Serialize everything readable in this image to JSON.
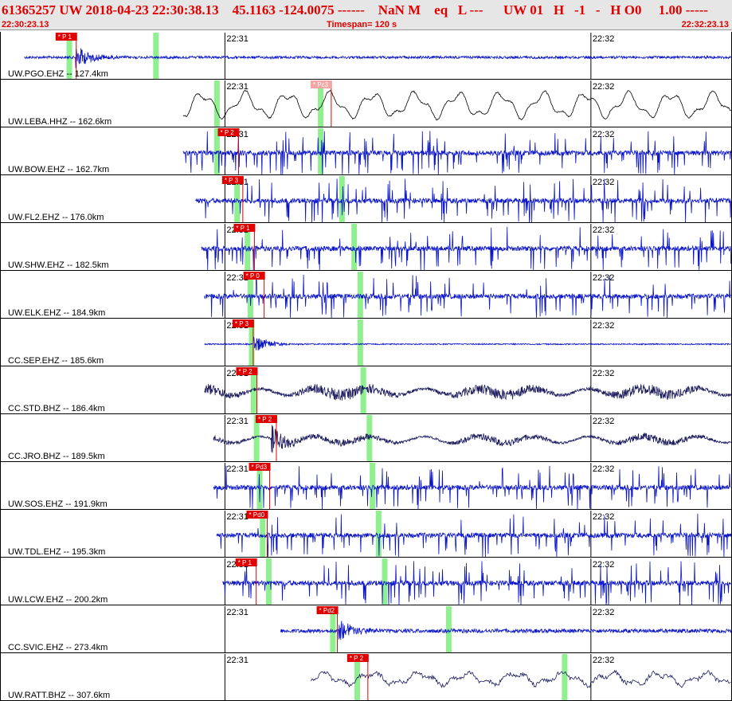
{
  "header": {
    "title_line": "61365257 UW 2018-04-23 22:30:38.13    45.1163 -124.0075 ------    NaN M    eq   L ---      UW 01   H   -1   -   H O0     1.00 -----",
    "start_time": "22:30:23.13",
    "timespan": "Timespan= 120 s",
    "end_time": "22:32:23.13"
  },
  "chart_data": {
    "type": "line",
    "title": "",
    "xlabel": "",
    "ylabel": "",
    "time_axis": {
      "start": "22:30:23.13",
      "end": "22:32:23.13",
      "span_s": 120,
      "minute_ticks": [
        {
          "label": "22:31",
          "t": 36.87
        },
        {
          "label": "22:32",
          "t": 96.87
        }
      ]
    },
    "colors": {
      "short_period": "#0a14c8",
      "broadband": "#1c1b5e",
      "long_period": "#000000",
      "pick": "#e00000",
      "pick_alt": "#f3a6a6",
      "window": "#90f090"
    },
    "series": [
      {
        "label": "UW.PGO.EHZ -- 127.4km",
        "style": "sp",
        "t_start": 4,
        "pick": {
          "label": "P 1",
          "t": 11.2
        },
        "event_t": 12.3,
        "amp": 0.55,
        "noise": 0.08,
        "greens": [
          11.3,
          25.5
        ]
      },
      {
        "label": "UW.LEBA.HHZ -- 162.6km",
        "style": "lp",
        "t_start": 30.0,
        "pick": {
          "label": "Pc3",
          "t": 53.0,
          "alt": true
        },
        "event_t": null,
        "amp": 0.0,
        "noise": 0.0,
        "greens": [
          35.5,
          52.5
        ]
      },
      {
        "label": "UW.BOW.EHZ -- 162.7km",
        "style": "spike",
        "t_start": 30.0,
        "pick": {
          "label": "P 2",
          "t": 37.8
        },
        "event_t": null,
        "amp": 0.0,
        "noise": 0.45,
        "greens": [
          35.5,
          52.5
        ]
      },
      {
        "label": "UW.FL2.EHZ -- 176.0km",
        "style": "spike",
        "t_start": 32.0,
        "pick": {
          "label": "P 3",
          "t": 38.5
        },
        "event_t": null,
        "amp": 0.0,
        "noise": 0.45,
        "greens": [
          38.8,
          56.0
        ]
      },
      {
        "label": "UW.SHW.EHZ -- 182.5km",
        "style": "spike",
        "t_start": 33.0,
        "pick": {
          "label": "P 1",
          "t": 40.4
        },
        "event_t": null,
        "amp": 0.0,
        "noise": 0.5,
        "greens": [
          40.5,
          58.0
        ]
      },
      {
        "label": "UW.ELK.EHZ -- 184.9km",
        "style": "spike",
        "t_start": 33.5,
        "pick": {
          "label": "P 0",
          "t": 42.0
        },
        "event_t": null,
        "amp": 0.0,
        "noise": 0.3,
        "greens": [
          41.0,
          59.0
        ]
      },
      {
        "label": "CC.SEP.EHZ -- 185.6km",
        "style": "sp",
        "t_start": 33.5,
        "pick": {
          "label": "P 3",
          "t": 40.2
        },
        "event_t": 41.5,
        "amp": 0.4,
        "noise": 0.04,
        "greens": [
          41.2,
          59.0
        ]
      },
      {
        "label": "CC.STD.BHZ -- 186.4km",
        "style": "bb",
        "t_start": 33.5,
        "pick": {
          "label": "P 2",
          "t": 40.8
        },
        "event_t": null,
        "amp": 0.0,
        "noise": 0.45,
        "greens": [
          41.5,
          59.5
        ]
      },
      {
        "label": "CC.JRO.BHZ -- 189.5km",
        "style": "bb",
        "t_start": 35.0,
        "pick": {
          "label": "P 2",
          "t": 44.0
        },
        "event_t": 44.5,
        "amp": 0.6,
        "noise": 0.3,
        "greens": [
          42.0,
          60.5
        ]
      },
      {
        "label": "UW.SOS.EHZ -- 191.9km",
        "style": "spike",
        "t_start": 35.0,
        "pick": {
          "label": "Pd3",
          "t": 42.9
        },
        "event_t": null,
        "amp": 0.0,
        "noise": 0.4,
        "greens": [
          42.5,
          61.0
        ]
      },
      {
        "label": "UW.TDL.EHZ -- 195.3km",
        "style": "spike",
        "t_start": 35.5,
        "pick": {
          "label": "Pd0",
          "t": 42.5
        },
        "event_t": null,
        "amp": 0.0,
        "noise": 0.3,
        "greens": [
          43.0,
          62.0
        ]
      },
      {
        "label": "UW.LCW.EHZ -- 200.2km",
        "style": "spike",
        "t_start": 36.5,
        "pick": {
          "label": "P 1",
          "t": 40.7
        },
        "event_t": null,
        "amp": 0.0,
        "noise": 0.5,
        "greens": [
          44.0,
          63.0
        ]
      },
      {
        "label": "CC.SVIC.EHZ -- 273.4km",
        "style": "sp",
        "t_start": 46.0,
        "pick": {
          "label": "Pd2",
          "t": 54.0
        },
        "event_t": 55.5,
        "amp": 0.5,
        "noise": 0.12,
        "greens": [
          54.5,
          73.5
        ]
      },
      {
        "label": "UW.RATT.BHZ -- 307.6km",
        "style": "bb2",
        "t_start": 51.0,
        "pick": {
          "label": "P 2",
          "t": 59.0
        },
        "event_t": null,
        "amp": 0.0,
        "noise": 0.3,
        "greens": [
          58.5,
          92.5
        ]
      }
    ]
  }
}
